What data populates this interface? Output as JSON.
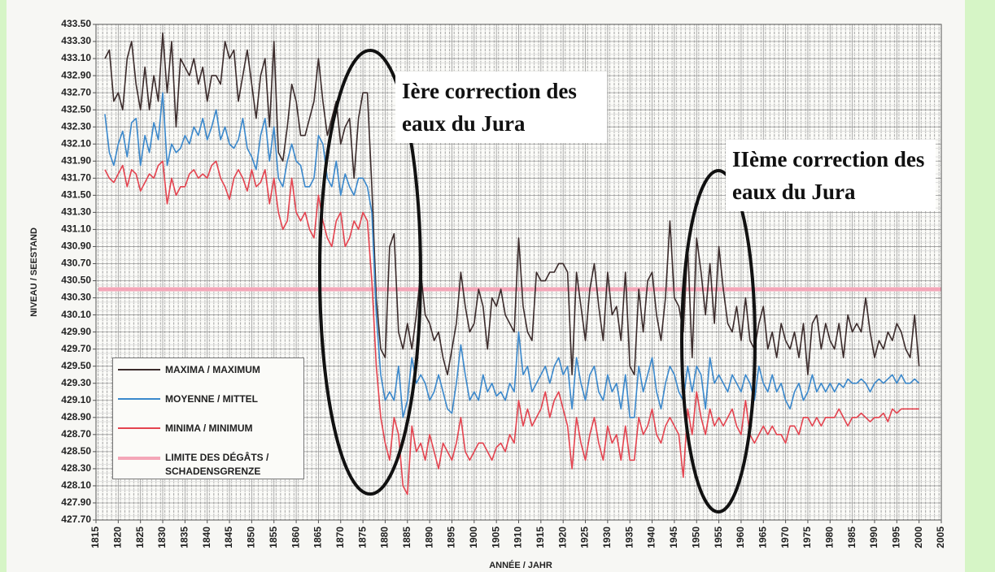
{
  "chart_data": {
    "type": "line",
    "ylabel": "NIVEAU / SEESTAND",
    "xlabel": "ANNÉE / JAHR",
    "annotations": [
      "Ière correction des eaux du Jura",
      "IIème correction des eaux du Jura"
    ],
    "xlim": [
      1815,
      2005
    ],
    "xticks": [
      1815,
      1820,
      1825,
      1830,
      1835,
      1840,
      1845,
      1850,
      1855,
      1860,
      1865,
      1870,
      1875,
      1880,
      1885,
      1890,
      1895,
      1900,
      1905,
      1910,
      1915,
      1920,
      1925,
      1930,
      1935,
      1940,
      1945,
      1950,
      1955,
      1960,
      1965,
      1970,
      1975,
      1980,
      1985,
      1990,
      1995,
      2000,
      2005
    ],
    "ylim": [
      427.7,
      433.5
    ],
    "yticks": [
      {
        "value": 427.7,
        "label": "427.70"
      },
      {
        "value": 427.9,
        "label": "427.90"
      },
      {
        "value": 428.1,
        "label": "428.10"
      },
      {
        "value": 428.3,
        "label": "428.30"
      },
      {
        "value": 428.5,
        "label": "428.50"
      },
      {
        "value": 428.7,
        "label": "428.70"
      },
      {
        "value": 428.9,
        "label": "428.90"
      },
      {
        "value": 429.1,
        "label": "429.10"
      },
      {
        "value": 429.3,
        "label": "429.30"
      },
      {
        "value": 429.5,
        "label": "429.50"
      },
      {
        "value": 429.7,
        "label": "429.70"
      },
      {
        "value": 429.9,
        "label": "429.90"
      },
      {
        "value": 430.1,
        "label": "430.10"
      },
      {
        "value": 430.3,
        "label": "430.30"
      },
      {
        "value": 430.5,
        "label": "430.50"
      },
      {
        "value": 430.7,
        "label": "430.70"
      },
      {
        "value": 430.9,
        "label": "430.90"
      },
      {
        "value": 431.1,
        "label": "431.10"
      },
      {
        "value": 431.3,
        "label": "431.30"
      },
      {
        "value": 431.5,
        "label": "431.50"
      },
      {
        "value": 431.7,
        "label": "431.70"
      },
      {
        "value": 431.9,
        "label": "431.90"
      },
      {
        "value": 432.1,
        "label": "432.10"
      },
      {
        "value": 432.3,
        "label": "432.30"
      },
      {
        "value": 432.5,
        "label": "432.50"
      },
      {
        "value": 432.7,
        "label": "432.70"
      },
      {
        "value": 432.9,
        "label": "432.90"
      },
      {
        "value": 433.1,
        "label": "433.10"
      },
      {
        "value": 433.3,
        "label": "433.30"
      },
      {
        "value": 433.5,
        "label": "433.50"
      }
    ],
    "grid": true,
    "legend": "lower left",
    "x": [
      1817,
      1818,
      1819,
      1820,
      1821,
      1822,
      1823,
      1824,
      1825,
      1826,
      1827,
      1828,
      1829,
      1830,
      1831,
      1832,
      1833,
      1834,
      1835,
      1836,
      1837,
      1838,
      1839,
      1840,
      1841,
      1842,
      1843,
      1844,
      1845,
      1846,
      1847,
      1848,
      1849,
      1850,
      1851,
      1852,
      1853,
      1854,
      1855,
      1856,
      1857,
      1858,
      1859,
      1860,
      1861,
      1862,
      1863,
      1864,
      1865,
      1866,
      1867,
      1868,
      1869,
      1870,
      1871,
      1872,
      1873,
      1874,
      1875,
      1876,
      1877,
      1878,
      1879,
      1880,
      1881,
      1882,
      1883,
      1884,
      1885,
      1886,
      1887,
      1888,
      1889,
      1890,
      1891,
      1892,
      1893,
      1894,
      1895,
      1896,
      1897,
      1898,
      1899,
      1900,
      1901,
      1902,
      1903,
      1904,
      1905,
      1906,
      1907,
      1908,
      1909,
      1910,
      1911,
      1912,
      1913,
      1914,
      1915,
      1916,
      1917,
      1918,
      1919,
      1920,
      1921,
      1922,
      1923,
      1924,
      1925,
      1926,
      1927,
      1928,
      1929,
      1930,
      1931,
      1932,
      1933,
      1934,
      1935,
      1936,
      1937,
      1938,
      1939,
      1940,
      1941,
      1942,
      1943,
      1944,
      1945,
      1946,
      1947,
      1948,
      1949,
      1950,
      1951,
      1952,
      1953,
      1954,
      1955,
      1956,
      1957,
      1958,
      1959,
      1960,
      1961,
      1962,
      1963,
      1964,
      1965,
      1966,
      1967,
      1968,
      1969,
      1970,
      1971,
      1972,
      1973,
      1974,
      1975,
      1976,
      1977,
      1978,
      1979,
      1980,
      1981,
      1982,
      1983,
      1984,
      1985,
      1986,
      1987,
      1988,
      1989,
      1990,
      1991,
      1992,
      1993,
      1994,
      1995,
      1996,
      1997,
      1998,
      1999,
      2000
    ],
    "series": [
      {
        "name": "MAXIMA / MAXIMUM",
        "color": "#3b2b2b",
        "values": [
          433.1,
          433.2,
          432.6,
          432.7,
          432.5,
          433.1,
          433.3,
          432.8,
          432.5,
          433.0,
          432.5,
          432.9,
          432.6,
          433.4,
          432.7,
          433.3,
          432.3,
          433.1,
          433.0,
          432.9,
          433.1,
          432.8,
          433.0,
          432.6,
          432.9,
          432.9,
          432.8,
          433.3,
          433.1,
          433.2,
          432.6,
          432.9,
          433.2,
          432.8,
          432.4,
          432.9,
          433.1,
          432.3,
          433.3,
          432.0,
          431.9,
          432.3,
          432.8,
          432.6,
          432.2,
          432.2,
          432.4,
          432.6,
          433.1,
          432.6,
          432.2,
          432.4,
          432.6,
          432.1,
          432.3,
          432.4,
          431.7,
          432.4,
          432.7,
          432.7,
          431.6,
          430.3,
          429.7,
          429.6,
          430.9,
          431.05,
          429.9,
          429.7,
          430.0,
          429.7,
          430.1,
          430.6,
          430.1,
          430.0,
          429.8,
          429.9,
          429.6,
          429.4,
          429.7,
          430.0,
          430.6,
          430.2,
          429.9,
          430.0,
          430.4,
          430.2,
          429.7,
          430.3,
          430.2,
          430.4,
          430.1,
          430.0,
          429.9,
          431.0,
          430.2,
          429.9,
          429.8,
          430.6,
          430.5,
          430.5,
          430.6,
          430.6,
          430.7,
          430.7,
          430.6,
          429.4,
          430.6,
          430.2,
          429.8,
          430.4,
          430.7,
          430.2,
          429.8,
          430.6,
          430.1,
          430.2,
          429.8,
          430.6,
          429.5,
          429.4,
          430.4,
          429.9,
          430.5,
          430.6,
          430.1,
          429.8,
          430.3,
          431.2,
          430.3,
          430.2,
          429.9,
          430.9,
          429.6,
          431.0,
          430.6,
          430.1,
          430.7,
          430.0,
          430.9,
          430.4,
          430.0,
          429.9,
          430.2,
          429.8,
          430.3,
          429.8,
          429.7,
          430.0,
          430.2,
          429.7,
          429.9,
          429.6,
          430.0,
          429.8,
          429.7,
          429.9,
          429.6,
          430.0,
          429.4,
          430.0,
          430.1,
          429.7,
          430.0,
          429.8,
          429.7,
          430.0,
          429.6,
          430.1,
          429.9,
          430.0,
          429.9,
          430.3,
          429.9,
          429.6,
          429.8,
          429.7,
          429.9,
          429.8,
          430.0,
          429.9,
          429.7,
          429.6,
          430.1,
          429.5
        ]
      },
      {
        "name": "MOYENNE / MITTEL",
        "color": "#3a88cc",
        "values": [
          432.45,
          432.0,
          431.85,
          432.1,
          432.25,
          431.95,
          432.35,
          432.4,
          431.85,
          432.2,
          432.0,
          432.35,
          432.15,
          432.7,
          431.85,
          432.1,
          432.0,
          432.05,
          432.2,
          432.1,
          432.3,
          432.2,
          432.4,
          432.15,
          432.3,
          432.5,
          432.15,
          432.3,
          432.1,
          432.05,
          432.15,
          432.4,
          432.05,
          431.95,
          431.8,
          432.2,
          432.4,
          431.9,
          432.3,
          431.7,
          431.6,
          431.9,
          432.1,
          431.9,
          431.85,
          431.6,
          431.6,
          431.7,
          432.2,
          432.1,
          431.7,
          431.6,
          431.9,
          431.5,
          431.75,
          431.6,
          431.5,
          431.7,
          431.7,
          431.6,
          431.3,
          430.1,
          429.4,
          429.1,
          429.2,
          429.1,
          429.5,
          428.9,
          429.1,
          429.6,
          429.3,
          429.4,
          429.3,
          429.1,
          429.2,
          429.4,
          429.2,
          429.0,
          428.95,
          429.3,
          429.75,
          429.4,
          429.1,
          429.2,
          429.1,
          429.4,
          429.2,
          429.3,
          429.15,
          429.2,
          429.1,
          429.3,
          429.2,
          429.9,
          429.4,
          429.5,
          429.2,
          429.3,
          429.4,
          429.5,
          429.3,
          429.5,
          429.6,
          429.4,
          429.5,
          429.0,
          429.6,
          429.3,
          429.1,
          429.4,
          429.5,
          429.2,
          429.1,
          429.4,
          429.2,
          429.3,
          429.0,
          429.4,
          428.9,
          428.9,
          429.5,
          429.2,
          429.4,
          429.6,
          429.2,
          429.0,
          429.3,
          429.5,
          429.4,
          429.2,
          429.1,
          429.5,
          429.2,
          429.5,
          429.4,
          429.0,
          429.6,
          429.3,
          429.4,
          429.3,
          429.2,
          429.4,
          429.3,
          429.2,
          429.4,
          429.3,
          429.1,
          429.5,
          429.3,
          429.2,
          429.4,
          429.2,
          429.3,
          429.1,
          429.0,
          429.2,
          429.3,
          429.1,
          429.2,
          429.4,
          429.2,
          429.3,
          429.2,
          429.3,
          429.2,
          429.3,
          429.25,
          429.35,
          429.3,
          429.3,
          429.35,
          429.3,
          429.2,
          429.3,
          429.35,
          429.3,
          429.35,
          429.4,
          429.3,
          429.4,
          429.3,
          429.3,
          429.35,
          429.3
        ]
      },
      {
        "name": "MINIMA / MINIMUM",
        "color": "#e4434f",
        "values": [
          431.8,
          431.7,
          431.65,
          431.75,
          431.85,
          431.6,
          431.8,
          431.75,
          431.55,
          431.65,
          431.75,
          431.7,
          431.85,
          431.9,
          431.4,
          431.7,
          431.5,
          431.6,
          431.6,
          431.75,
          431.8,
          431.7,
          431.75,
          431.7,
          431.85,
          431.9,
          431.7,
          431.6,
          431.45,
          431.7,
          431.8,
          431.7,
          431.55,
          431.8,
          431.6,
          431.65,
          431.8,
          431.4,
          431.7,
          431.3,
          431.1,
          431.2,
          431.7,
          431.3,
          431.2,
          431.3,
          431.1,
          431.0,
          431.5,
          431.2,
          431.0,
          430.9,
          431.2,
          431.3,
          430.9,
          431.0,
          431.2,
          431.1,
          431.3,
          431.2,
          430.5,
          429.5,
          428.9,
          428.6,
          428.4,
          428.9,
          428.7,
          428.1,
          428.0,
          428.8,
          428.5,
          428.6,
          428.4,
          428.7,
          428.5,
          428.3,
          428.6,
          428.5,
          428.4,
          428.6,
          428.9,
          428.5,
          428.4,
          428.5,
          428.6,
          428.6,
          428.5,
          428.4,
          428.55,
          428.6,
          428.5,
          428.7,
          428.6,
          429.1,
          428.8,
          429.0,
          428.8,
          428.9,
          429.0,
          429.2,
          428.9,
          429.1,
          429.2,
          429.0,
          428.8,
          428.3,
          428.9,
          428.6,
          428.4,
          428.7,
          428.9,
          428.6,
          428.4,
          428.8,
          428.6,
          428.7,
          428.4,
          428.8,
          428.4,
          428.4,
          428.9,
          428.7,
          428.8,
          429.0,
          428.7,
          428.6,
          428.8,
          428.9,
          428.8,
          428.7,
          428.2,
          429.0,
          428.7,
          429.2,
          428.9,
          428.7,
          429.0,
          428.8,
          428.9,
          428.8,
          428.9,
          429.0,
          428.8,
          428.7,
          429.1,
          428.7,
          428.6,
          428.7,
          428.8,
          428.7,
          428.8,
          428.7,
          428.7,
          428.6,
          428.8,
          428.8,
          428.7,
          428.9,
          428.9,
          428.8,
          428.9,
          428.8,
          428.9,
          428.9,
          428.9,
          429.0,
          428.9,
          428.8,
          428.9,
          428.9,
          428.95,
          428.9,
          428.85,
          428.9,
          428.9,
          428.95,
          428.85,
          429.0,
          428.95,
          429.0,
          429.0,
          429.0,
          429.0,
          429.0
        ]
      }
    ],
    "threshold": {
      "name": "LIMITE DES DÉGÂTS / SCHADENSGRENZE",
      "value": 430.4,
      "color": "#f4a6b8"
    }
  }
}
